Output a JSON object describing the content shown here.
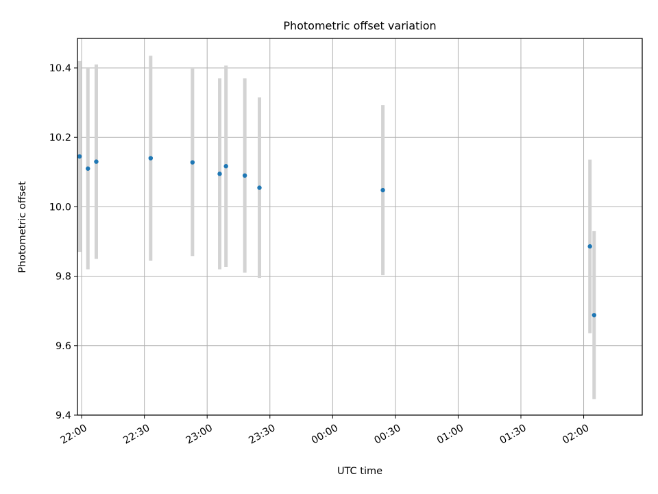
{
  "chart_data": {
    "type": "scatter",
    "title": "Photometric offset variation",
    "xlabel": "UTC time",
    "ylabel": "Photometric offset",
    "x_axis": {
      "scale": "time",
      "range": [
        "21:58",
        "02:28"
      ],
      "ticks": [
        "22:00",
        "22:30",
        "23:00",
        "23:30",
        "00:00",
        "00:30",
        "01:00",
        "01:30",
        "02:00"
      ]
    },
    "y_axis": {
      "range": [
        9.4,
        10.485
      ],
      "ticks": [
        "9.4",
        "9.6",
        "9.8",
        "10.0",
        "10.2",
        "10.4"
      ]
    },
    "grid": true,
    "series": [
      {
        "marker_color": "#1f77b4",
        "errorbar_color": "#d3d3d3",
        "points": [
          {
            "time": "21:59",
            "y": 10.145,
            "yerr": 0.275
          },
          {
            "time": "22:03",
            "y": 10.11,
            "yerr": 0.29
          },
          {
            "time": "22:07",
            "y": 10.13,
            "yerr": 0.28
          },
          {
            "time": "22:33",
            "y": 10.14,
            "yerr": 0.295
          },
          {
            "time": "22:53",
            "y": 10.128,
            "yerr": 0.27
          },
          {
            "time": "23:06",
            "y": 10.095,
            "yerr": 0.275
          },
          {
            "time": "23:09",
            "y": 10.117,
            "yerr": 0.29
          },
          {
            "time": "23:18",
            "y": 10.09,
            "yerr": 0.28
          },
          {
            "time": "23:25",
            "y": 10.055,
            "yerr": 0.26
          },
          {
            "time": "00:24",
            "y": 10.048,
            "yerr": 0.245
          },
          {
            "time": "02:03",
            "y": 9.886,
            "yerr": 0.25
          },
          {
            "time": "02:05",
            "y": 9.688,
            "yerr": 0.242
          }
        ]
      }
    ]
  }
}
